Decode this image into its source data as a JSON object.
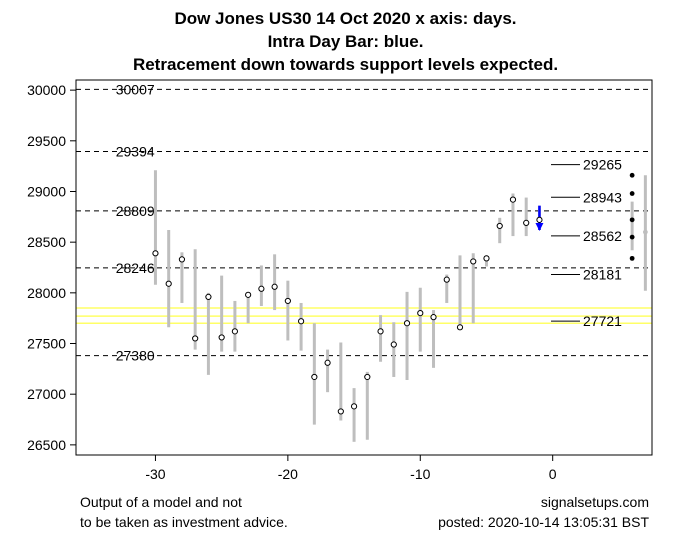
{
  "title_lines": [
    "Dow Jones US30 14 Oct 2020 x axis: days.",
    "Intra Day Bar: blue.",
    "Retracement down towards support levels expected."
  ],
  "footer": {
    "left_line1": "Output of a model and not",
    "left_line2": "to be taken as investment advice.",
    "right_line1": "signalsetups.com",
    "right_line2": "posted: 2020-10-14 13:05:31 BST"
  },
  "colors": {
    "range_bar": "#bebebe",
    "intraday_bar": "#0000ff",
    "support_band": "#ffff66",
    "level_line": "#000000",
    "dot_fill": "#ffffff"
  },
  "chart_data": {
    "type": "scatter",
    "xlim": [
      -36,
      7.5
    ],
    "ylim": [
      26400,
      30100
    ],
    "x_ticks": [
      -30,
      -20,
      -10,
      0
    ],
    "y_ticks": [
      26500,
      27000,
      27500,
      28000,
      28500,
      29000,
      29500,
      30000
    ],
    "daily_bars": [
      {
        "x": -30,
        "low": 28080,
        "high": 29210,
        "close": 28390
      },
      {
        "x": -29,
        "low": 27660,
        "high": 28620,
        "close": 28090
      },
      {
        "x": -28,
        "low": 27900,
        "high": 28400,
        "close": 28330
      },
      {
        "x": -27,
        "low": 27440,
        "high": 28430,
        "close": 27550
      },
      {
        "x": -26,
        "low": 27190,
        "high": 28000,
        "close": 27960
      },
      {
        "x": -25,
        "low": 27420,
        "high": 28170,
        "close": 27560
      },
      {
        "x": -24,
        "low": 27420,
        "high": 27920,
        "close": 27620
      },
      {
        "x": -23,
        "low": 27700,
        "high": 28000,
        "close": 27980
      },
      {
        "x": -22,
        "low": 27870,
        "high": 28270,
        "close": 28040
      },
      {
        "x": -21,
        "low": 27830,
        "high": 28380,
        "close": 28060
      },
      {
        "x": -20,
        "low": 27530,
        "high": 28120,
        "close": 27920
      },
      {
        "x": -19,
        "low": 27430,
        "high": 27900,
        "close": 27720
      },
      {
        "x": -18,
        "low": 26700,
        "high": 27700,
        "close": 27170
      },
      {
        "x": -17,
        "low": 27020,
        "high": 27440,
        "close": 27310
      },
      {
        "x": -16,
        "low": 26740,
        "high": 27510,
        "close": 26830
      },
      {
        "x": -15,
        "low": 26530,
        "high": 27060,
        "close": 26880
      },
      {
        "x": -14,
        "low": 26550,
        "high": 27220,
        "close": 27170
      },
      {
        "x": -13,
        "low": 27320,
        "high": 27780,
        "close": 27620
      },
      {
        "x": -12,
        "low": 27170,
        "high": 27710,
        "close": 27490
      },
      {
        "x": -11,
        "low": 27140,
        "high": 28010,
        "close": 27700
      },
      {
        "x": -10,
        "low": 27420,
        "high": 28050,
        "close": 27800
      },
      {
        "x": -9,
        "low": 27260,
        "high": 27830,
        "close": 27760
      },
      {
        "x": -8,
        "low": 27900,
        "high": 28180,
        "close": 28130
      },
      {
        "x": -7,
        "low": 27680,
        "high": 28370,
        "close": 27660
      },
      {
        "x": -6,
        "low": 27700,
        "high": 28390,
        "close": 28310
      },
      {
        "x": -5,
        "low": 28260,
        "high": 28370,
        "close": 28340
      },
      {
        "x": -4,
        "low": 28490,
        "high": 28740,
        "close": 28660
      },
      {
        "x": -3,
        "low": 28560,
        "high": 28980,
        "close": 28920
      },
      {
        "x": -2,
        "low": 28560,
        "high": 28940,
        "close": 28690
      },
      {
        "x": -1,
        "low": 28620,
        "high": 28860,
        "close": 28720
      }
    ],
    "intraday_bar": {
      "x": -1,
      "low": 28620,
      "high": 28860
    },
    "resistance_support_levels": [
      {
        "value": 30007,
        "label": "30007"
      },
      {
        "value": 29394,
        "label": "29394"
      },
      {
        "value": 28809,
        "label": "28809"
      },
      {
        "value": 28246,
        "label": "28246"
      },
      {
        "value": 27380,
        "label": "27380"
      }
    ],
    "support_band_levels": [
      27850,
      27770,
      27700
    ],
    "projected_levels": [
      {
        "value": 29265,
        "label": "29265"
      },
      {
        "value": 28943,
        "label": "28943"
      },
      {
        "value": 28562,
        "label": "28562"
      },
      {
        "value": 28181,
        "label": "28181"
      },
      {
        "value": 27721,
        "label": "27721"
      }
    ],
    "projection_points_x6": [
      29160,
      28980,
      28720,
      28550,
      28340
    ],
    "projection_bars": [
      {
        "x": 6,
        "low": 28420,
        "high": 28900
      },
      {
        "x": 7,
        "low": 28020,
        "high": 29160
      }
    ],
    "projection_dot_x7": 28600
  }
}
